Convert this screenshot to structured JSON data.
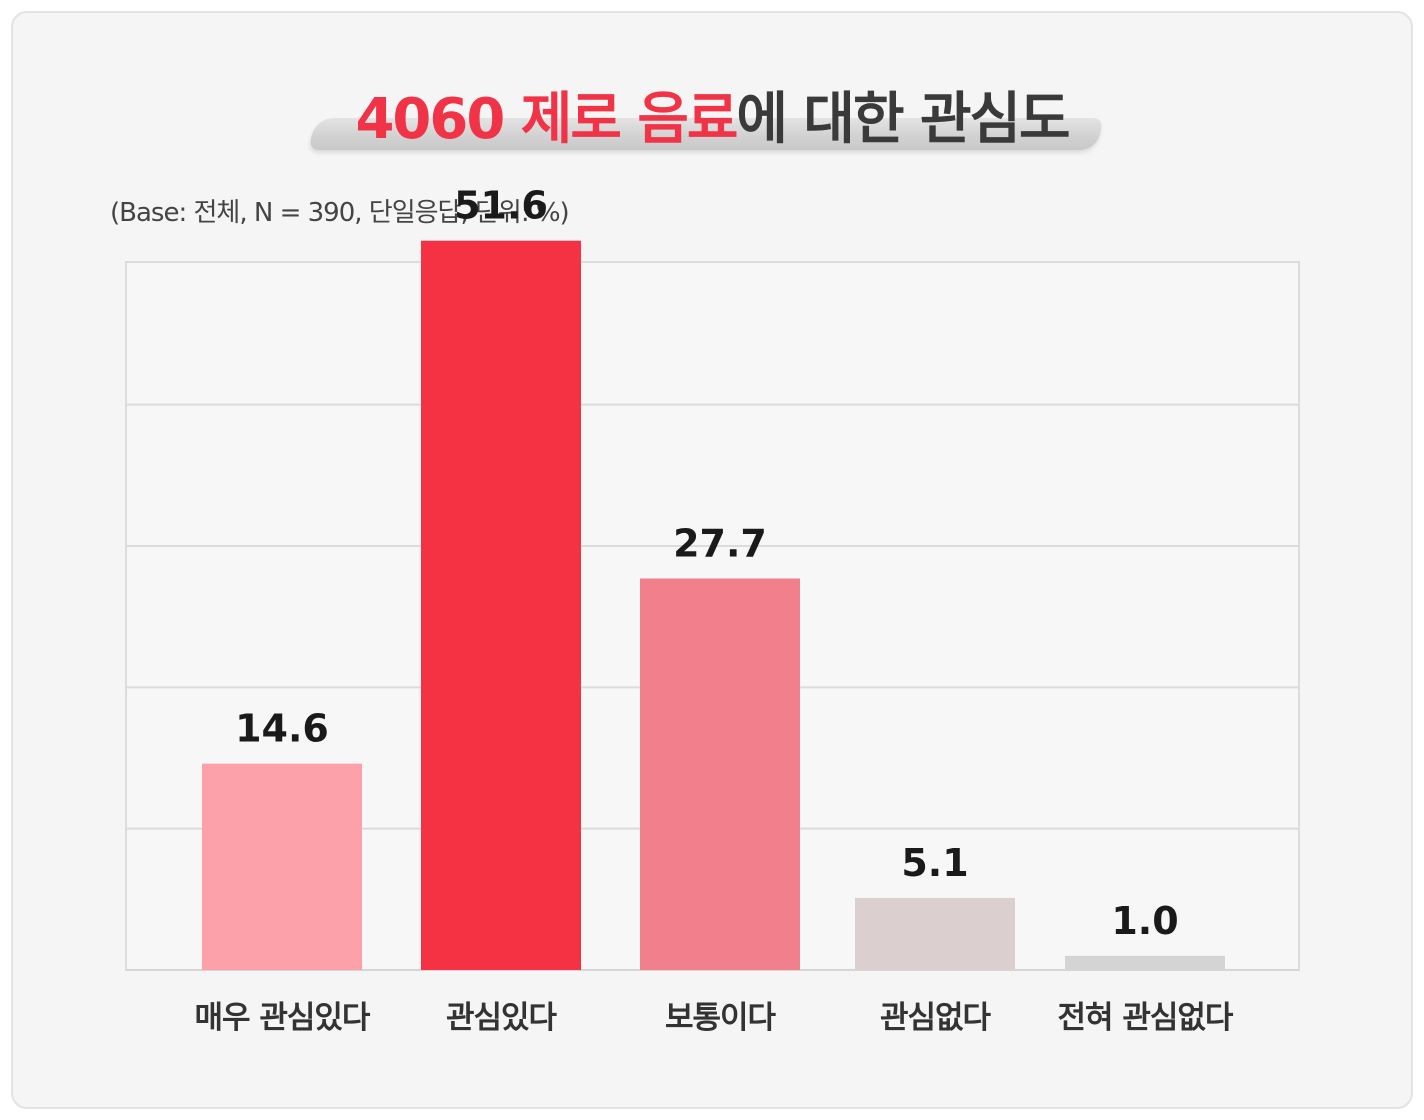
{
  "title": {
    "highlight": "4060 제로 음료",
    "rest": "에 대한 관심도"
  },
  "base_note": "(Base: 전체, N = 390, 단일응답, 단위: %)",
  "colors": {
    "title_highlight": "#f03346",
    "title_text": "#3a3a3a"
  },
  "chart_data": {
    "type": "bar",
    "categories": [
      "매우 관심있다",
      "관심있다",
      "보통이다",
      "관심없다",
      "전혀 관심없다"
    ],
    "values": [
      14.6,
      51.6,
      27.7,
      5.1,
      1.0
    ],
    "value_labels": [
      "14.6",
      "51.6",
      "27.7",
      "5.1",
      "1.0"
    ],
    "colors": [
      "#fca0a9",
      "#f53144",
      "#f1808c",
      "#dccfcf",
      "#d4d4d4"
    ],
    "ylim": [
      0,
      60
    ],
    "grid": true,
    "title": "4060 제로 음료에 대한 관심도",
    "xlabel": "",
    "ylabel": ""
  }
}
